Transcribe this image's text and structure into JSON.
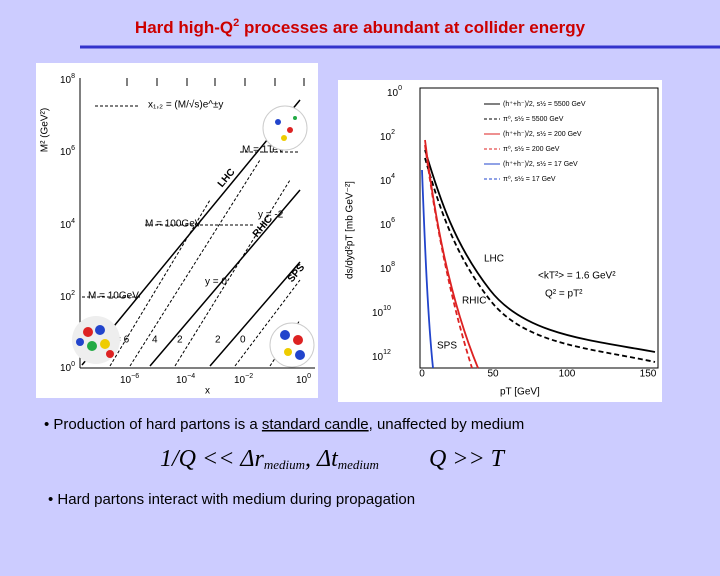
{
  "header": {
    "title_prefix": "Hard high-Q",
    "title_sup": "2",
    "title_suffix": " processes are abundant at collider energy"
  },
  "left_figure": {
    "y_label": "M² (GeV²)",
    "y_ticks": [
      {
        "base": "10",
        "exp": "8"
      },
      {
        "base": "10",
        "exp": "6"
      },
      {
        "base": "10",
        "exp": "4"
      },
      {
        "base": "10",
        "exp": "2"
      },
      {
        "base": "10",
        "exp": "0"
      }
    ],
    "x_ticks": [
      {
        "base": "10",
        "exp": "−6"
      },
      {
        "base": "10",
        "exp": "−4"
      },
      {
        "base": "10",
        "exp": "−2"
      },
      {
        "base": "10",
        "exp": "0"
      }
    ],
    "x_label": "x",
    "formula": "x₁,₂ = (M/√s)e^±y",
    "mass_labels": [
      "M = 1TeV",
      "M = 100GeV",
      "M = 10GeV"
    ],
    "collider_labels": [
      "LHC",
      "RHIC",
      "SPS"
    ],
    "rapidity_labels": [
      "y = -2",
      "y = 0",
      "= 6",
      "4",
      "2",
      "2",
      "0"
    ]
  },
  "right_figure": {
    "y_label": "ds/dyd²pT [mb GeV⁻²]",
    "y_ticks": [
      {
        "base": "10",
        "exp": "0"
      },
      {
        "base": "10",
        "exp": "2"
      },
      {
        "base": "10",
        "exp": "4"
      },
      {
        "base": "10",
        "exp": "6"
      },
      {
        "base": "10",
        "exp": "8"
      },
      {
        "base": "10",
        "exp": "10"
      },
      {
        "base": "10",
        "exp": "12"
      }
    ],
    "x_ticks": [
      "0",
      "50",
      "100",
      "150"
    ],
    "x_label": "pT [GeV]",
    "legend": [
      "(h⁺+h⁻)/2, s½ = 5500 GeV",
      "π⁰, s½ = 5500 GeV",
      "(h⁺+h⁻)/2, s½ = 200 GeV",
      "π⁰, s½ = 200 GeV",
      "(h⁺+h⁻)/2, s½ = 17 GeV",
      "π⁰, s½ = 17 GeV"
    ],
    "curve_labels": [
      "LHC",
      "RHIC",
      "SPS"
    ],
    "annotations": [
      "<kT²> = 1.6 GeV²",
      "Q² = pT²"
    ]
  },
  "bullets": [
    {
      "prefix": "• Production of hard partons is a ",
      "underlined": "standard candle",
      "suffix": ", unaffected by medium"
    },
    {
      "text": "• Hard partons interact with medium during propagation"
    }
  ],
  "equation": {
    "left": "1/Q << Δr",
    "sub1": "medium",
    "mid": ", Δt",
    "sub2": "medium",
    "right": "Q >> T"
  }
}
